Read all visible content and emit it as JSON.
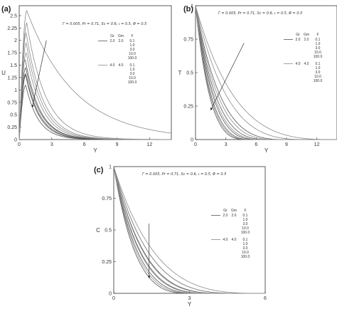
{
  "chart_data": [
    {
      "type": "line",
      "panel_label": "(a)",
      "params_text": "Γ = 0.005,  Pr = 0.71,  Sc = 0.6,  ι = 0.5,  Φ = 0.5",
      "xlabel": "Y",
      "ylabel": "U",
      "xlim": [
        0,
        14
      ],
      "ylim": [
        0,
        2.7
      ],
      "xticks": [
        "0",
        "3",
        "6",
        "9",
        "12"
      ],
      "yticks": [
        "0",
        "0.25",
        "0.5",
        "0.75",
        "1",
        "1.25",
        "1.5",
        "1.75",
        "2",
        "2.25",
        "2.5"
      ],
      "legend_headers": [
        "Gr",
        "Gm",
        "F"
      ],
      "legend_groups": [
        {
          "gr": "2.0",
          "gm": "2.0",
          "f": [
            "0.1",
            "1.0",
            "3.0",
            "10.0",
            "100.0"
          ]
        },
        {
          "gr": "4.0",
          "gm": "4.0",
          "f": [
            "0.1",
            "1.0",
            "3.0",
            "10.0",
            "100.0"
          ]
        }
      ],
      "series": [
        {
          "group": 1,
          "F": 0.1,
          "peak_x": 0.55,
          "peak_y": 1.62,
          "decay": 1.05
        },
        {
          "group": 1,
          "F": 1.0,
          "peak_x": 0.6,
          "peak_y": 1.45,
          "decay": 1.05
        },
        {
          "group": 1,
          "F": 3.0,
          "peak_x": 0.6,
          "peak_y": 1.33,
          "decay": 1.0
        },
        {
          "group": 1,
          "F": 10.0,
          "peak_x": 0.6,
          "peak_y": 1.3,
          "decay": 0.95
        },
        {
          "group": 1,
          "F": 100.0,
          "peak_x": 0.6,
          "peak_y": 1.1,
          "decay": 0.9
        },
        {
          "group": 2,
          "F": 0.1,
          "peak_x": 0.7,
          "peak_y": 2.6,
          "decay": 3.4
        },
        {
          "group": 2,
          "F": 1.0,
          "peak_x": 0.7,
          "peak_y": 2.35,
          "decay": 1.35
        },
        {
          "group": 2,
          "F": 3.0,
          "peak_x": 0.65,
          "peak_y": 2.15,
          "decay": 1.2
        },
        {
          "group": 2,
          "F": 10.0,
          "peak_x": 0.65,
          "peak_y": 1.95,
          "decay": 1.15
        },
        {
          "group": 2,
          "F": 100.0,
          "peak_x": 0.65,
          "peak_y": 1.75,
          "decay": 1.1
        }
      ],
      "arrow": {
        "from": [
          2.5,
          2.0
        ],
        "to": [
          1.2,
          0.65
        ]
      }
    },
    {
      "type": "line",
      "panel_label": "(b)",
      "params_text": "Γ = 0.005,  Pr = 0.71,  Sc = 0.6,  ι = 0.5,  Φ = 0.5",
      "xlabel": "Y",
      "ylabel": "T",
      "xlim": [
        0,
        14
      ],
      "ylim": [
        0,
        1
      ],
      "xticks": [
        "0",
        "3",
        "6",
        "9",
        "12"
      ],
      "yticks": [
        "0",
        "0.25",
        "0.5",
        "0.75",
        "1"
      ],
      "legend_headers": [
        "Gr",
        "Gm",
        "F"
      ],
      "legend_groups": [
        {
          "gr": "2.0",
          "gm": "2.0",
          "f": [
            "0.1",
            "1.0",
            "3.0",
            "10.0",
            "100.0"
          ]
        },
        {
          "gr": "4.0",
          "gm": "4.0",
          "f": [
            "0.1",
            "1.0",
            "3.0",
            "10.0",
            "100.0"
          ]
        }
      ],
      "series": [
        {
          "group": 1,
          "F": 0.1,
          "zero_at": 5.0
        },
        {
          "group": 1,
          "F": 1.0,
          "zero_at": 5.6
        },
        {
          "group": 1,
          "F": 3.0,
          "zero_at": 6.2
        },
        {
          "group": 1,
          "F": 10.0,
          "zero_at": 7.2
        },
        {
          "group": 1,
          "F": 100.0,
          "zero_at": 8.8
        },
        {
          "group": 2,
          "F": 0.1,
          "zero_at": 5.3
        },
        {
          "group": 2,
          "F": 1.0,
          "zero_at": 6.6
        },
        {
          "group": 2,
          "F": 3.0,
          "zero_at": 8.0
        },
        {
          "group": 2,
          "F": 10.0,
          "zero_at": 11.0
        },
        {
          "group": 2,
          "F": 100.0,
          "zero_at": 13.5
        }
      ],
      "arrow": {
        "from": [
          4.8,
          0.72
        ],
        "to": [
          1.5,
          0.22
        ]
      }
    },
    {
      "type": "line",
      "panel_label": "(c)",
      "params_text": "Γ = 0.005,  Pr = 0.71,  Sc = 0.6,  ι = 0.5,  Φ = 0.5",
      "xlabel": "Y",
      "ylabel": "C",
      "xlim": [
        0,
        6
      ],
      "ylim": [
        0,
        1
      ],
      "xticks": [
        "0",
        "3",
        "6"
      ],
      "yticks": [
        "0",
        "0.25",
        "0.5",
        "0.75",
        "1"
      ],
      "legend_headers": [
        "Gr",
        "Gm",
        "F"
      ],
      "legend_groups": [
        {
          "gr": "2.0",
          "gm": "2.0",
          "f": [
            "0.1",
            "1.0",
            "3.0",
            "10.0",
            "100.0"
          ]
        },
        {
          "gr": "4.0",
          "gm": "4.0",
          "f": [
            "0.1",
            "1.0",
            "3.0",
            "10.0",
            "100.0"
          ]
        }
      ],
      "series": [
        {
          "group": 1,
          "F": 0.1,
          "zero_at": 3.0
        },
        {
          "group": 1,
          "F": 1.0,
          "zero_at": 3.4
        },
        {
          "group": 1,
          "F": 3.0,
          "zero_at": 3.8
        },
        {
          "group": 1,
          "F": 10.0,
          "zero_at": 4.3
        },
        {
          "group": 1,
          "F": 100.0,
          "zero_at": 4.9
        },
        {
          "group": 2,
          "F": 0.1,
          "zero_at": 3.2
        },
        {
          "group": 2,
          "F": 1.0,
          "zero_at": 3.7
        },
        {
          "group": 2,
          "F": 3.0,
          "zero_at": 4.2
        },
        {
          "group": 2,
          "F": 10.0,
          "zero_at": 4.9
        },
        {
          "group": 2,
          "F": 100.0,
          "zero_at": 5.7
        }
      ],
      "arrow": {
        "from": [
          1.4,
          0.55
        ],
        "to": [
          1.4,
          0.12
        ]
      }
    }
  ]
}
